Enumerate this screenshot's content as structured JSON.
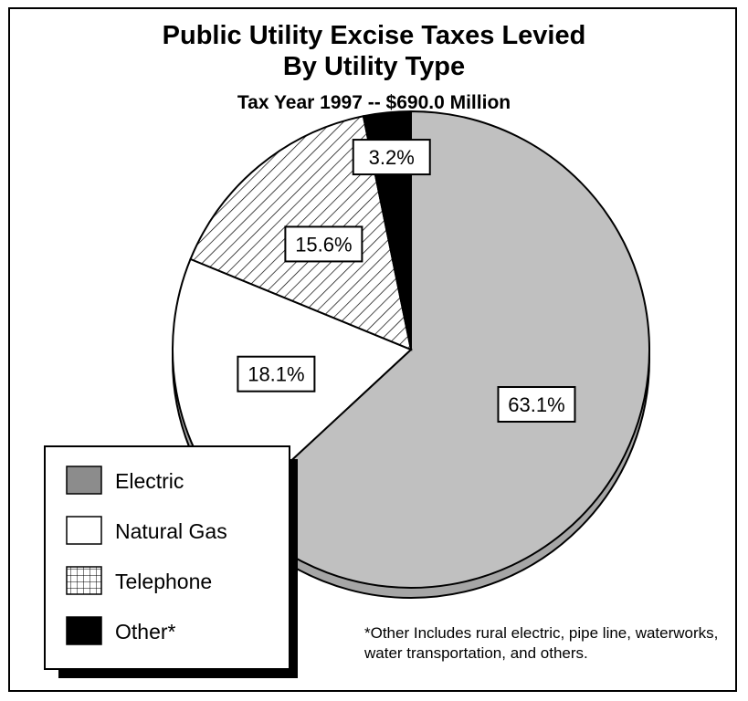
{
  "chart_data": {
    "type": "pie",
    "title": "Public Utility Excise Taxes Levied",
    "title_line2": "By Utility Type",
    "subtitle": "Tax Year 1997 -- $690.0 Million",
    "categories": [
      "Electric",
      "Natural Gas",
      "Telephone",
      "Other*"
    ],
    "values": [
      63.1,
      18.1,
      15.6,
      3.2
    ],
    "labels": [
      "63.1%",
      "18.1%",
      "15.6%",
      "3.2%"
    ],
    "colors": {
      "Electric": "#c0c0c0",
      "Electric_legend": "#8c8c8c",
      "Natural Gas": "#ffffff",
      "Telephone": "hatch",
      "Other*": "#000000"
    },
    "legend_position": "bottom-left",
    "footnote": "*Other Includes rural electric, pipe line, waterworks, water transportation, and others."
  }
}
